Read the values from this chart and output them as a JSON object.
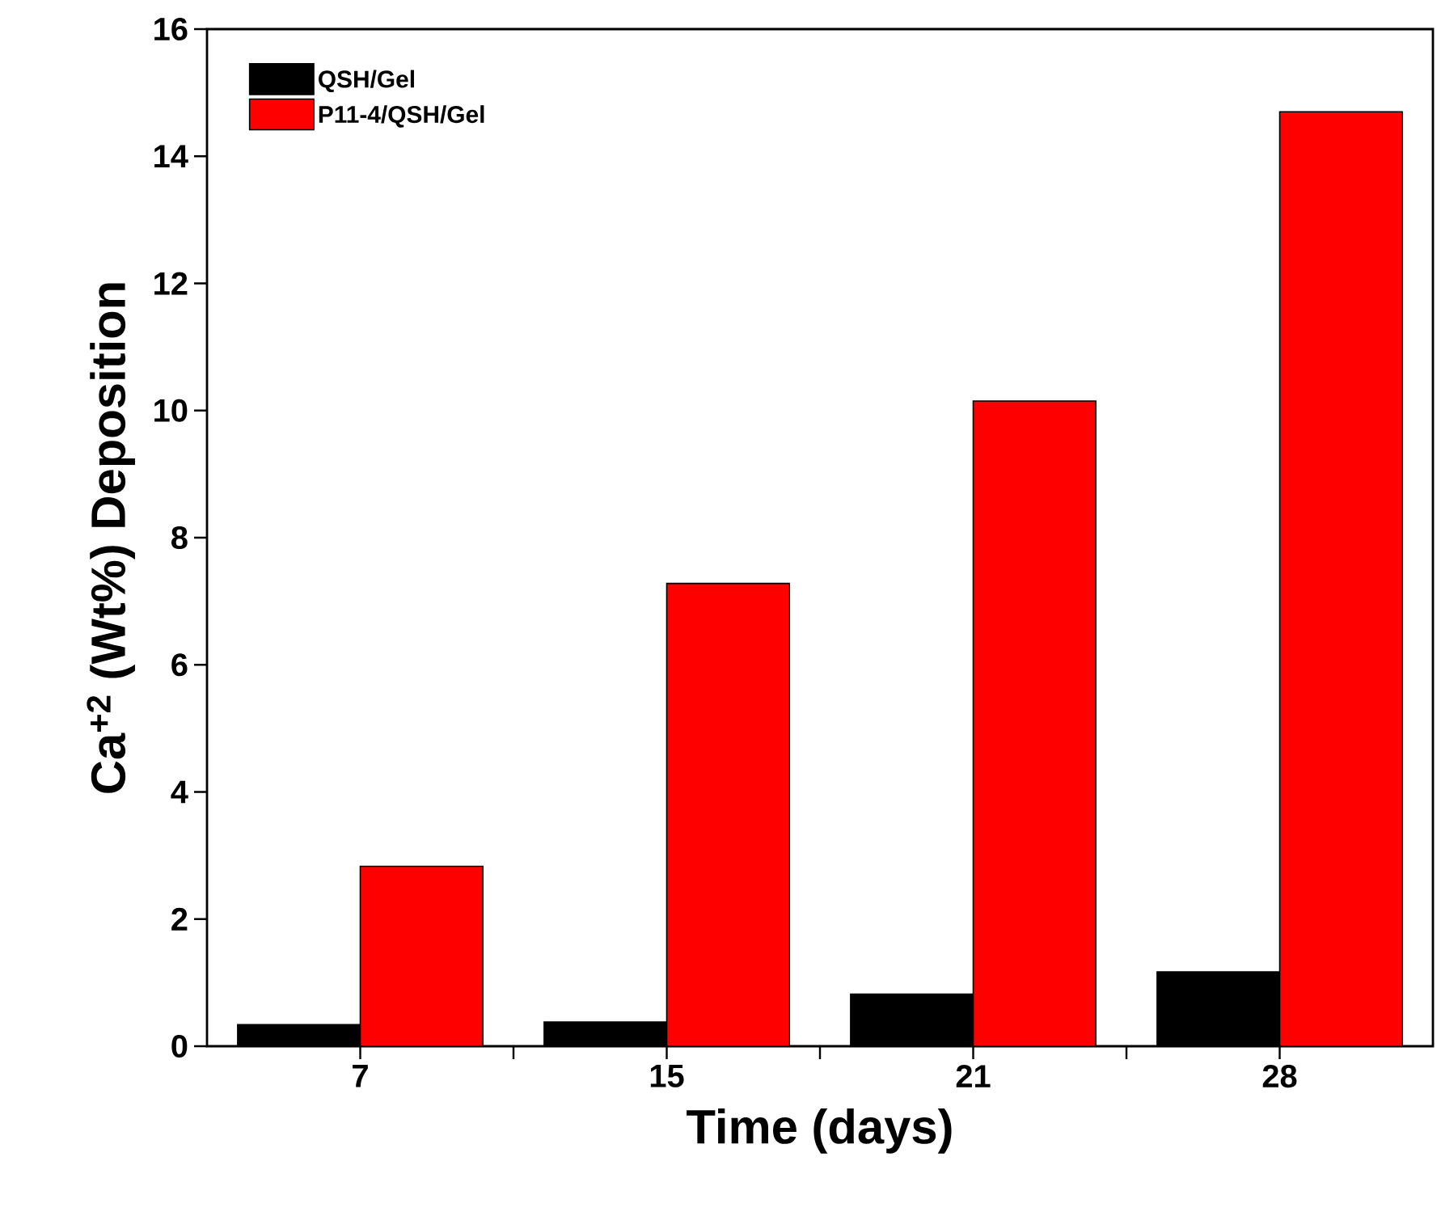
{
  "chart_data": {
    "type": "bar",
    "xlabel": "Time (days)",
    "ylabel": "Ca$^{+2}$ (Wt%) Deposition",
    "categories": [
      "7",
      "15",
      "21",
      "28"
    ],
    "series": [
      {
        "name": "QSH/Gel",
        "color": "#000000",
        "values": [
          0.34,
          0.38,
          0.82,
          1.17
        ]
      },
      {
        "name": "P11-4/QSH/Gel",
        "color": "#ff0000",
        "values": [
          2.83,
          7.28,
          10.15,
          14.7
        ]
      }
    ],
    "ylim": [
      0,
      16
    ],
    "yticks": [
      0,
      2,
      4,
      6,
      8,
      10,
      12,
      14,
      16
    ],
    "grid": false,
    "legend": "top left"
  }
}
